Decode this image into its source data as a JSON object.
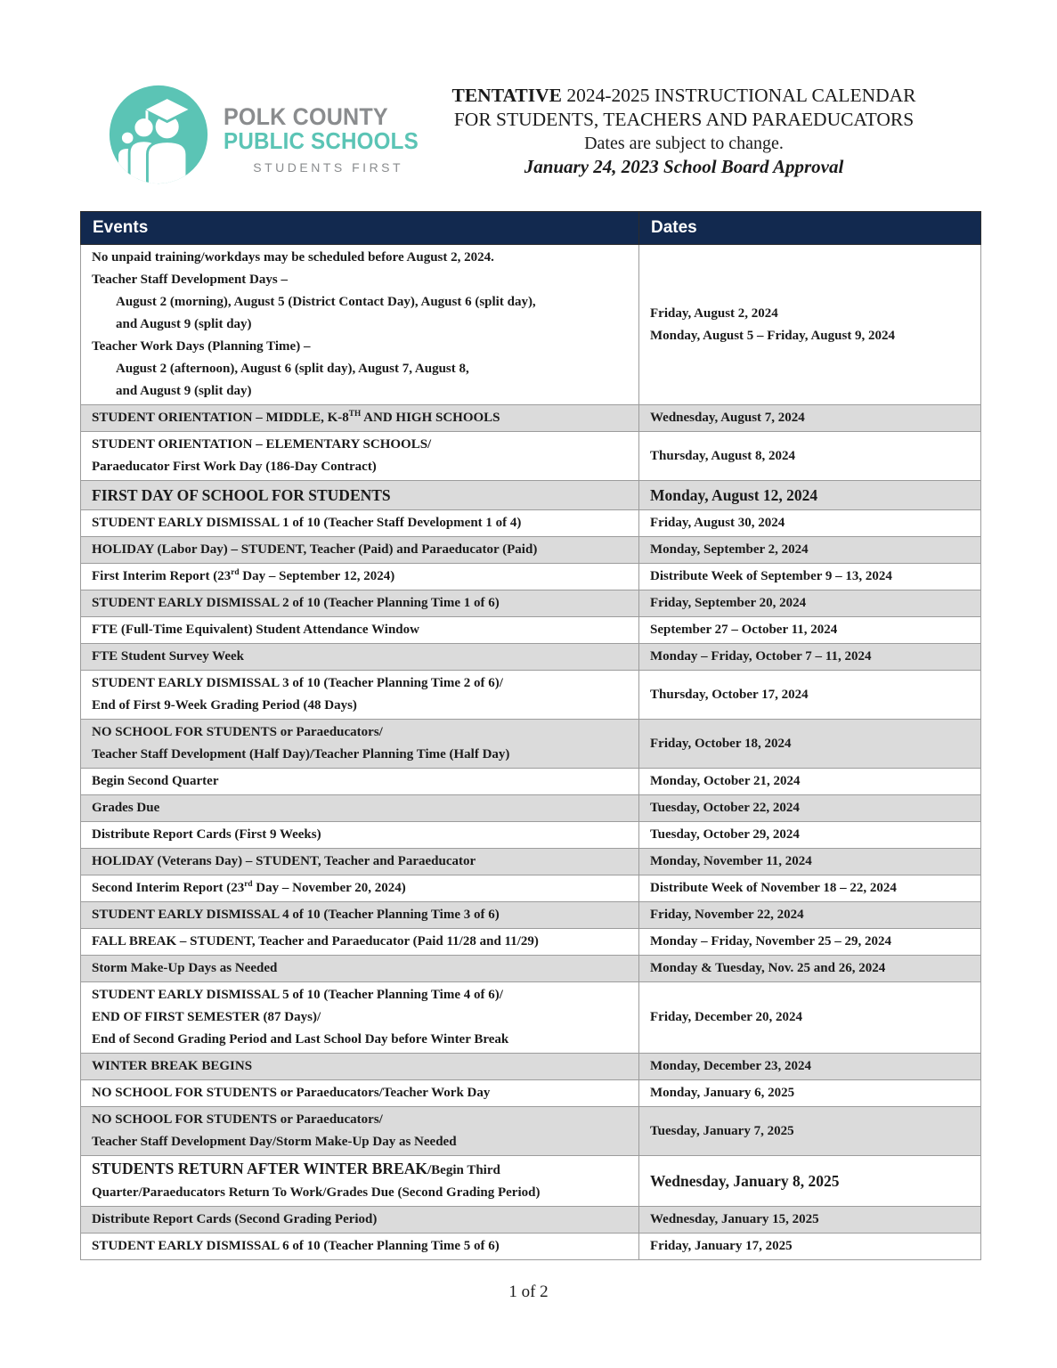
{
  "logo": {
    "line1": "POLK COUNTY",
    "line2": "PUBLIC SCHOOLS",
    "tagline": "STUDENTS FIRST",
    "teal": "#5bc4b5",
    "gray": "#8a8c8e"
  },
  "header": {
    "title_bold": "TENTATIVE",
    "title_rest": " 2024-2025 INSTRUCTIONAL CALENDAR",
    "line2": "FOR STUDENTS, TEACHERS AND PARAEDUCATORS",
    "line3": "Dates are subject to change.",
    "line4": "January 24, 2023 School Board Approval"
  },
  "table": {
    "columns": [
      "Events",
      "Dates"
    ],
    "header_bg": "#12294f",
    "shaded_row_bg": "#dbdbdb",
    "rows": [
      {
        "shaded": false,
        "event": [
          {
            "seg": [
              {
                "t": "No unpaid training/workdays may be scheduled before August 2, 2024."
              }
            ]
          },
          {
            "seg": [
              {
                "t": "Teacher Staff Development Days –"
              }
            ]
          },
          {
            "ind": true,
            "seg": [
              {
                "t": "August 2 (morning), August 5 (District Contact Day), August 6 (split day),"
              }
            ]
          },
          {
            "ind": true,
            "seg": [
              {
                "t": "and August 9 (split day)"
              }
            ]
          },
          {
            "seg": [
              {
                "t": "Teacher Work Days (Planning Time) –"
              }
            ]
          },
          {
            "ind": true,
            "seg": [
              {
                "t": "August 2 (afternoon), August 6 (split day), August 7, August 8,"
              }
            ]
          },
          {
            "ind": true,
            "seg": [
              {
                "t": "and August 9 (split day)"
              }
            ]
          }
        ],
        "dates": [
          "Friday, August 2, 2024",
          "Monday, August 5 – Friday, August 9, 2024"
        ]
      },
      {
        "shaded": true,
        "event": [
          {
            "seg": [
              {
                "t": "STUDENT ORIENTATION –  MIDDLE, K-8"
              },
              {
                "t": "TH",
                "sup": true
              },
              {
                "t": " AND HIGH SCHOOLS"
              }
            ]
          }
        ],
        "dates": [
          "Wednesday, August 7, 2024"
        ]
      },
      {
        "shaded": false,
        "event": [
          {
            "seg": [
              {
                "t": "STUDENT ORIENTATION –  ELEMENTARY SCHOOLS/"
              }
            ]
          },
          {
            "seg": [
              {
                "t": "Paraeducator First Work Day (186-Day Contract)"
              }
            ]
          }
        ],
        "dates": [
          "Thursday, August 8, 2024"
        ]
      },
      {
        "shaded": true,
        "big": true,
        "event": [
          {
            "seg": [
              {
                "t": "FIRST DAY OF SCHOOL FOR STUDENTS"
              }
            ]
          }
        ],
        "dates": [
          "Monday, August 12, 2024"
        ]
      },
      {
        "shaded": false,
        "event": [
          {
            "seg": [
              {
                "t": "STUDENT EARLY DISMISSAL 1 of 10 (Teacher Staff Development 1 of 4)"
              }
            ]
          }
        ],
        "dates": [
          "Friday, August 30, 2024"
        ]
      },
      {
        "shaded": true,
        "event": [
          {
            "seg": [
              {
                "t": "HOLIDAY (Labor Day) – STUDENT, Teacher (Paid) and Paraeducator (Paid)"
              }
            ]
          }
        ],
        "dates": [
          "Monday, September 2, 2024"
        ]
      },
      {
        "shaded": false,
        "event": [
          {
            "seg": [
              {
                "t": "First Interim Report (23"
              },
              {
                "t": "rd",
                "sup": true
              },
              {
                "t": " Day – September 12, 2024)"
              }
            ]
          }
        ],
        "dates": [
          "Distribute Week of September 9 – 13, 2024"
        ]
      },
      {
        "shaded": true,
        "event": [
          {
            "seg": [
              {
                "t": "STUDENT EARLY DISMISSAL 2 of 10 (Teacher Planning Time 1 of 6)"
              }
            ]
          }
        ],
        "dates": [
          "Friday, September 20, 2024"
        ]
      },
      {
        "shaded": false,
        "event": [
          {
            "seg": [
              {
                "t": "FTE (Full-Time Equivalent) Student Attendance Window"
              }
            ]
          }
        ],
        "dates": [
          "September 27 – October 11, 2024"
        ]
      },
      {
        "shaded": true,
        "event": [
          {
            "seg": [
              {
                "t": "FTE Student Survey Week"
              }
            ]
          }
        ],
        "dates": [
          "Monday – Friday, October 7 – 11, 2024"
        ]
      },
      {
        "shaded": false,
        "event": [
          {
            "seg": [
              {
                "t": "STUDENT EARLY DISMISSAL 3 of 10 (Teacher Planning Time 2 of 6)/"
              }
            ]
          },
          {
            "seg": [
              {
                "t": "End of First 9-Week Grading Period (48 Days)"
              }
            ]
          }
        ],
        "dates": [
          "Thursday, October 17, 2024"
        ]
      },
      {
        "shaded": true,
        "event": [
          {
            "seg": [
              {
                "t": "NO SCHOOL FOR STUDENTS or Paraeducators/"
              }
            ]
          },
          {
            "seg": [
              {
                "t": "Teacher Staff Development (Half Day)/Teacher Planning Time (Half Day)"
              }
            ]
          }
        ],
        "dates": [
          "Friday, October 18, 2024"
        ]
      },
      {
        "shaded": false,
        "event": [
          {
            "seg": [
              {
                "t": "Begin Second Quarter"
              }
            ]
          }
        ],
        "dates": [
          "Monday, October 21, 2024"
        ]
      },
      {
        "shaded": true,
        "event": [
          {
            "seg": [
              {
                "t": "Grades Due"
              }
            ]
          }
        ],
        "dates": [
          "Tuesday, October 22, 2024"
        ]
      },
      {
        "shaded": false,
        "event": [
          {
            "seg": [
              {
                "t": "Distribute Report Cards (First 9 Weeks)"
              }
            ]
          }
        ],
        "dates": [
          "Tuesday, October 29, 2024"
        ]
      },
      {
        "shaded": true,
        "event": [
          {
            "seg": [
              {
                "t": "HOLIDAY (Veterans Day) – STUDENT, Teacher and Paraeducator"
              }
            ]
          }
        ],
        "dates": [
          "Monday, November 11, 2024"
        ]
      },
      {
        "shaded": false,
        "event": [
          {
            "seg": [
              {
                "t": "Second Interim Report (23"
              },
              {
                "t": "rd",
                "sup": true
              },
              {
                "t": " Day – November 20, 2024)"
              }
            ]
          }
        ],
        "dates": [
          "Distribute Week of November 18 – 22, 2024"
        ]
      },
      {
        "shaded": true,
        "event": [
          {
            "seg": [
              {
                "t": "STUDENT EARLY DISMISSAL 4 of 10 (Teacher Planning Time 3 of 6)"
              }
            ]
          }
        ],
        "dates": [
          "Friday, November 22, 2024"
        ]
      },
      {
        "shaded": false,
        "event": [
          {
            "seg": [
              {
                "t": "FALL BREAK – STUDENT, Teacher and Paraeducator (Paid 11/28 and 11/29)"
              }
            ]
          }
        ],
        "dates": [
          "Monday – Friday, November 25 – 29, 2024"
        ]
      },
      {
        "shaded": true,
        "event": [
          {
            "seg": [
              {
                "t": "Storm Make-Up Days as Needed"
              }
            ]
          }
        ],
        "dates": [
          "Monday & Tuesday, Nov. 25 and 26, 2024"
        ]
      },
      {
        "shaded": false,
        "event": [
          {
            "seg": [
              {
                "t": "STUDENT EARLY DISMISSAL 5 of 10 (Teacher Planning Time 4 of 6)/"
              }
            ]
          },
          {
            "seg": [
              {
                "t": "END OF FIRST SEMESTER (87 Days)/"
              }
            ]
          },
          {
            "seg": [
              {
                "t": "End of Second Grading Period and Last School Day before Winter Break"
              }
            ]
          }
        ],
        "dates": [
          "Friday, December 20, 2024"
        ]
      },
      {
        "shaded": true,
        "event": [
          {
            "seg": [
              {
                "t": "WINTER BREAK BEGINS"
              }
            ]
          }
        ],
        "dates": [
          "Monday, December 23, 2024"
        ]
      },
      {
        "shaded": false,
        "event": [
          {
            "seg": [
              {
                "t": "NO SCHOOL FOR STUDENTS or Paraeducators/Teacher Work Day"
              }
            ]
          }
        ],
        "dates": [
          "Monday, January 6, 2025"
        ]
      },
      {
        "shaded": true,
        "event": [
          {
            "seg": [
              {
                "t": "NO SCHOOL FOR STUDENTS or Paraeducators/"
              }
            ]
          },
          {
            "seg": [
              {
                "t": "Teacher Staff Development Day/Storm Make-Up Day as Needed"
              }
            ]
          }
        ],
        "dates": [
          "Tuesday, January 7, 2025"
        ]
      },
      {
        "shaded": false,
        "bigDate": true,
        "event": [
          {
            "seg": [
              {
                "t": "STUDENTS RETURN AFTER WINTER BREAK",
                "big": true
              },
              {
                "t": "/Begin Third"
              }
            ]
          },
          {
            "seg": [
              {
                "t": "Quarter/Paraeducators Return To Work/Grades Due (Second Grading Period)"
              }
            ]
          }
        ],
        "dates": [
          "Wednesday, January 8, 2025"
        ]
      },
      {
        "shaded": true,
        "event": [
          {
            "seg": [
              {
                "t": "Distribute Report Cards (Second Grading Period)"
              }
            ]
          }
        ],
        "dates": [
          "Wednesday, January 15, 2025"
        ]
      },
      {
        "shaded": false,
        "event": [
          {
            "seg": [
              {
                "t": "STUDENT EARLY DISMISSAL 6 of 10 (Teacher Planning Time 5 of 6)"
              }
            ]
          }
        ],
        "dates": [
          "Friday, January 17, 2025"
        ]
      }
    ]
  },
  "footer": {
    "page": "1 of 2"
  }
}
